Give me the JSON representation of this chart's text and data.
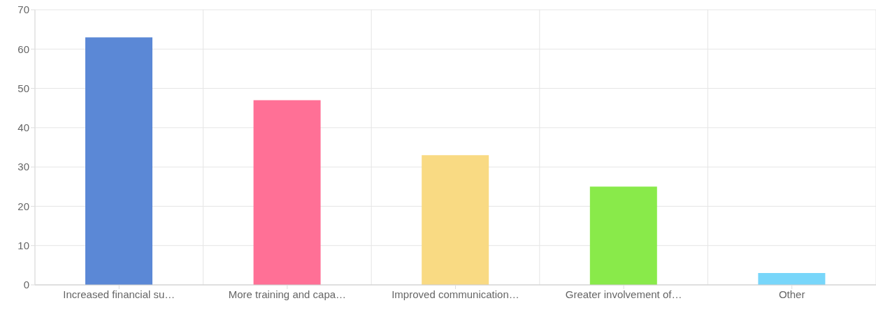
{
  "chart_data": {
    "type": "bar",
    "categories": [
      "Increased financial su…",
      "More training and capa…",
      "Improved communication…",
      "Greater involvement of…",
      "Other"
    ],
    "values": [
      63,
      47,
      33,
      25,
      3
    ],
    "colors": [
      "#5b88d6",
      "#ff7096",
      "#f9da83",
      "#89ea4a",
      "#78d6fa"
    ],
    "ylim": [
      0,
      70
    ],
    "yticks": [
      0,
      10,
      20,
      30,
      40,
      50,
      60,
      70
    ],
    "grid": true
  }
}
